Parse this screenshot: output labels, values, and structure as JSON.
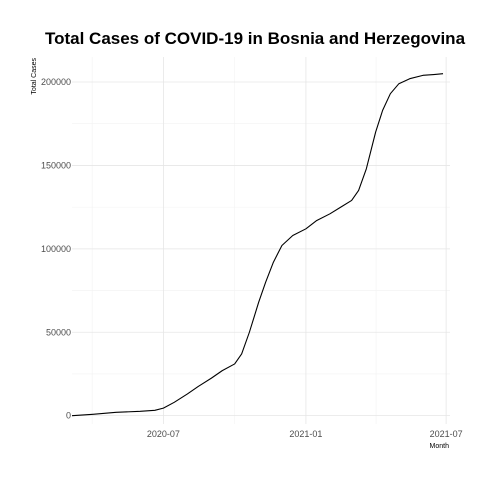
{
  "chart_data": {
    "type": "line",
    "title": "Total Cases of COVID-19 in Bosnia and Herzegovina",
    "xlabel": "Month",
    "ylabel": "Total Cases",
    "grid": true,
    "legend": "none",
    "xlim": [
      "2020-03-05",
      "2021-07-06"
    ],
    "ylim": [
      -5000,
      215000
    ],
    "x_ticks": [
      {
        "value": "2020-07-01",
        "label": "2020-07"
      },
      {
        "value": "2021-01-01",
        "label": "2021-01"
      },
      {
        "value": "2021-07-01",
        "label": "2021-07"
      }
    ],
    "y_ticks": [
      {
        "value": 0,
        "label": "0"
      },
      {
        "value": 50000,
        "label": "50000"
      },
      {
        "value": 100000,
        "label": "100000"
      },
      {
        "value": 150000,
        "label": "150000"
      },
      {
        "value": 200000,
        "label": "200000"
      }
    ],
    "series": [
      {
        "color": "#000000",
        "x": [
          "2020-03-05",
          "2020-04-01",
          "2020-05-01",
          "2020-06-01",
          "2020-06-20",
          "2020-07-01",
          "2020-07-15",
          "2020-08-01",
          "2020-08-15",
          "2020-09-01",
          "2020-09-15",
          "2020-10-01",
          "2020-10-10",
          "2020-10-20",
          "2020-11-01",
          "2020-11-10",
          "2020-11-20",
          "2020-12-01",
          "2020-12-15",
          "2021-01-01",
          "2021-01-15",
          "2021-02-01",
          "2021-02-15",
          "2021-03-01",
          "2021-03-10",
          "2021-03-20",
          "2021-04-01",
          "2021-04-10",
          "2021-04-20",
          "2021-05-01",
          "2021-05-15",
          "2021-06-01",
          "2021-06-15",
          "2021-06-27"
        ],
        "y": [
          0,
          800,
          2000,
          2600,
          3200,
          4500,
          8000,
          13000,
          17500,
          22500,
          27000,
          31000,
          37000,
          50000,
          68000,
          80000,
          92000,
          102000,
          108000,
          112000,
          117000,
          121000,
          125000,
          129000,
          135000,
          148000,
          170000,
          183000,
          193000,
          199000,
          202000,
          204000,
          204500,
          205000
        ]
      }
    ]
  }
}
